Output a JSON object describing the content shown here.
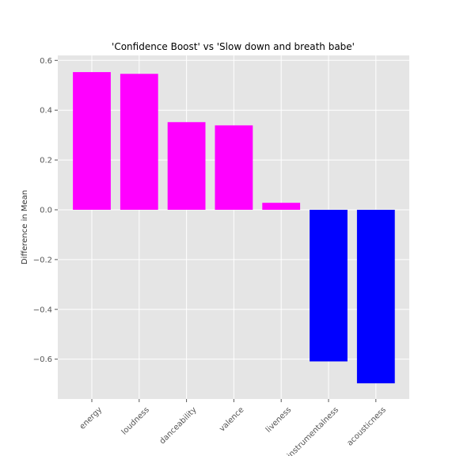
{
  "chart_data": {
    "type": "bar",
    "title": "'Confidence Boost' vs 'Slow down and breath babe'",
    "xlabel": "",
    "ylabel": "Difference in Mean",
    "categories": [
      "energy",
      "loudness",
      "danceability",
      "valence",
      "liveness",
      "instrumentalness",
      "acousticness"
    ],
    "values": [
      0.553,
      0.546,
      0.352,
      0.339,
      0.028,
      -0.609,
      -0.697
    ],
    "ylim": [
      -0.76,
      0.62
    ],
    "yticks": [
      0.6,
      0.4,
      0.2,
      0.0,
      -0.2,
      -0.4,
      -0.6
    ],
    "ytick_labels": [
      "0.6",
      "0.4",
      "0.2",
      "0.0",
      "−0.2",
      "−0.4",
      "−0.6"
    ],
    "grid": true,
    "colors": {
      "positive": "#ff00ff",
      "negative": "#0000ff",
      "background": "#e5e5e5",
      "grid": "#ffffff"
    }
  }
}
